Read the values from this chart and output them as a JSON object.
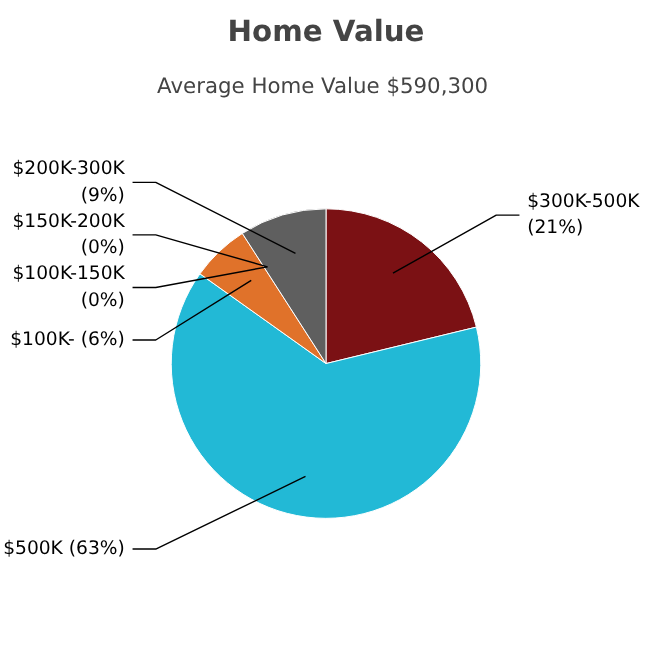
{
  "chart_data": {
    "type": "pie",
    "title": "Home Value",
    "subtitle": "Average Home Value  $590,300",
    "categories": [
      "$300K-500K",
      "$500K",
      "$100K-",
      "$150K-200K",
      "$100K-150K",
      "$200K-300K"
    ],
    "values": [
      21,
      63,
      6,
      0,
      0,
      9
    ],
    "colors": [
      "#7b1114",
      "#22b9d6",
      "#e0722a",
      "#c8c8c8",
      "#a0a0a0",
      "#5f5f5f"
    ],
    "data_labels": true,
    "value_labels": [
      "(21%)",
      "(63%)",
      "(6%)",
      "(0%)",
      "(0%)",
      "(9%)"
    ]
  }
}
